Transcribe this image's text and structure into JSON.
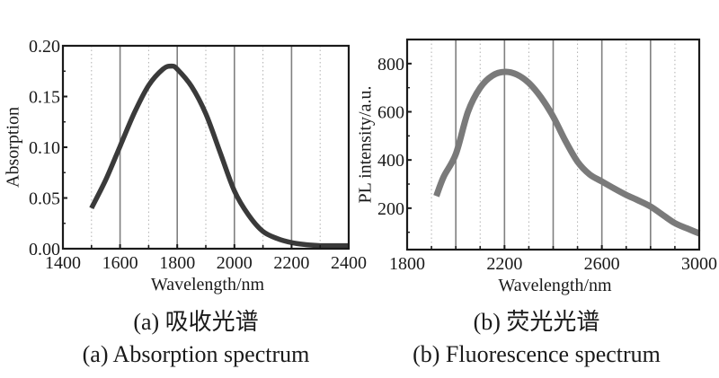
{
  "captions": {
    "a_zh": "(a) 吸收光谱",
    "a_en": "(a) Absorption spectrum",
    "b_zh": "(b) 荧光光谱",
    "b_en": "(b) Fluorescence spectrum"
  },
  "colors": {
    "axis": "#1a1a1a",
    "grid_major": "#808080",
    "grid_minor": "#b0b0b0",
    "absorption_line": "#3a3a3a",
    "pl_line": "#7a7a7a"
  },
  "chart_data": [
    {
      "id": "absorption",
      "type": "line",
      "title": "",
      "xlabel": "Wavelength/nm",
      "ylabel": "Absorption",
      "xlim": [
        1400,
        2400
      ],
      "ylim": [
        0.0,
        0.2
      ],
      "xticks": [
        1400,
        1600,
        1800,
        2000,
        2200,
        2400
      ],
      "xtick_labels": [
        "1400",
        "1600",
        "1800",
        "2000",
        "2200",
        "2400"
      ],
      "xminor_ticks": [
        1500,
        1700,
        1900,
        2100,
        2300
      ],
      "yticks": [
        0.0,
        0.05,
        0.1,
        0.15,
        0.2
      ],
      "ytick_labels": [
        "0.00",
        "0.05",
        "0.10",
        "0.15",
        "0.20"
      ],
      "yminor_ticks": [
        0.025,
        0.075,
        0.125,
        0.175
      ],
      "grid": {
        "major_x": [
          1600,
          1800,
          2000,
          2200
        ],
        "minor_x_dotted": [
          1500,
          1700,
          1900,
          2100,
          2300
        ]
      },
      "legend": "none",
      "series": [
        {
          "name": "Absorption",
          "x": [
            1500,
            1550,
            1600,
            1650,
            1700,
            1750,
            1780,
            1800,
            1850,
            1900,
            1950,
            2000,
            2050,
            2100,
            2150,
            2200,
            2250,
            2300,
            2350,
            2400
          ],
          "y": [
            0.04,
            0.068,
            0.101,
            0.134,
            0.161,
            0.177,
            0.18,
            0.177,
            0.16,
            0.133,
            0.095,
            0.057,
            0.033,
            0.017,
            0.01,
            0.006,
            0.004,
            0.003,
            0.003,
            0.003
          ]
        }
      ]
    },
    {
      "id": "fluorescence",
      "type": "line",
      "title": "",
      "xlabel": "Wavelength/nm",
      "ylabel": "PL intensity/a.u.",
      "xlim": [
        1800,
        3000
      ],
      "ylim": [
        28,
        900
      ],
      "xticks": [
        1800,
        2200,
        2600,
        3000
      ],
      "xtick_labels": [
        "1800",
        "2200",
        "2600",
        "3000"
      ],
      "xminor_ticks": [
        1900,
        2000,
        2100,
        2300,
        2400,
        2500,
        2700,
        2800,
        2900
      ],
      "yticks": [
        200,
        400,
        600,
        800
      ],
      "ytick_labels": [
        "200",
        "400",
        "600",
        "800"
      ],
      "yminor_ticks": [
        100,
        300,
        500,
        700
      ],
      "grid": {
        "major_x": [
          2000,
          2200,
          2400,
          2600,
          2800
        ],
        "minor_x_dotted": [
          1900,
          2100,
          2300,
          2500,
          2700,
          2900
        ]
      },
      "legend": "none",
      "series": [
        {
          "name": "PL intensity",
          "x": [
            1920,
            1950,
            2000,
            2050,
            2100,
            2150,
            2200,
            2250,
            2300,
            2350,
            2400,
            2450,
            2500,
            2550,
            2600,
            2650,
            2700,
            2750,
            2800,
            2850,
            2900,
            2950,
            3000
          ],
          "y": [
            250,
            330,
            425,
            600,
            700,
            750,
            766,
            755,
            720,
            660,
            580,
            480,
            393,
            340,
            311,
            282,
            255,
            232,
            207,
            172,
            138,
            116,
            95
          ]
        }
      ]
    }
  ]
}
